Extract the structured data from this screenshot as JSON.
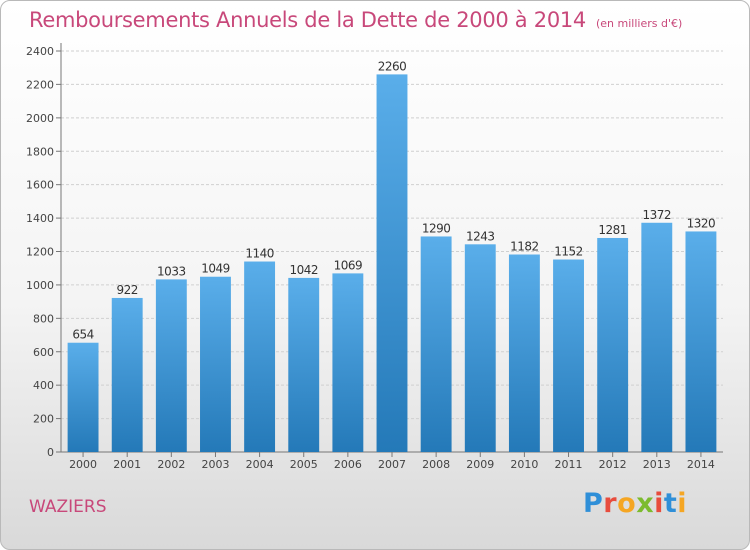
{
  "title": "Remboursements Annuels de la Dette de 2000 à 2014",
  "subtitle": "(en milliers d'€)",
  "city": "WAZIERS",
  "brand": {
    "letters": [
      "P",
      "r",
      "o",
      "x",
      "i",
      "t",
      "i"
    ],
    "colors": [
      "#2f8fd8",
      "#e84c3d",
      "#f5a623",
      "#7cbb2e",
      "#e84c3d",
      "#2f8fd8",
      "#f5a623"
    ]
  },
  "colors": {
    "bar_top": "#5aaeea",
    "bar_bottom": "#2479b8",
    "title": "#c8487a",
    "grid": "#d0d0d0"
  },
  "chart_data": {
    "type": "bar",
    "title": "Remboursements Annuels de la Dette de 2000 à 2014",
    "subtitle": "(en milliers d'€)",
    "categories": [
      "2000",
      "2001",
      "2002",
      "2003",
      "2004",
      "2005",
      "2006",
      "2007",
      "2008",
      "2009",
      "2010",
      "2011",
      "2012",
      "2013",
      "2014"
    ],
    "values": [
      654,
      922,
      1033,
      1049,
      1140,
      1042,
      1069,
      2260,
      1290,
      1243,
      1182,
      1152,
      1281,
      1372,
      1320
    ],
    "ylim": [
      0,
      2400
    ],
    "yticks": [
      0,
      200,
      400,
      600,
      800,
      1000,
      1200,
      1400,
      1600,
      1800,
      2000,
      2200,
      2400
    ],
    "grid": true,
    "xlabel": "",
    "ylabel": ""
  }
}
